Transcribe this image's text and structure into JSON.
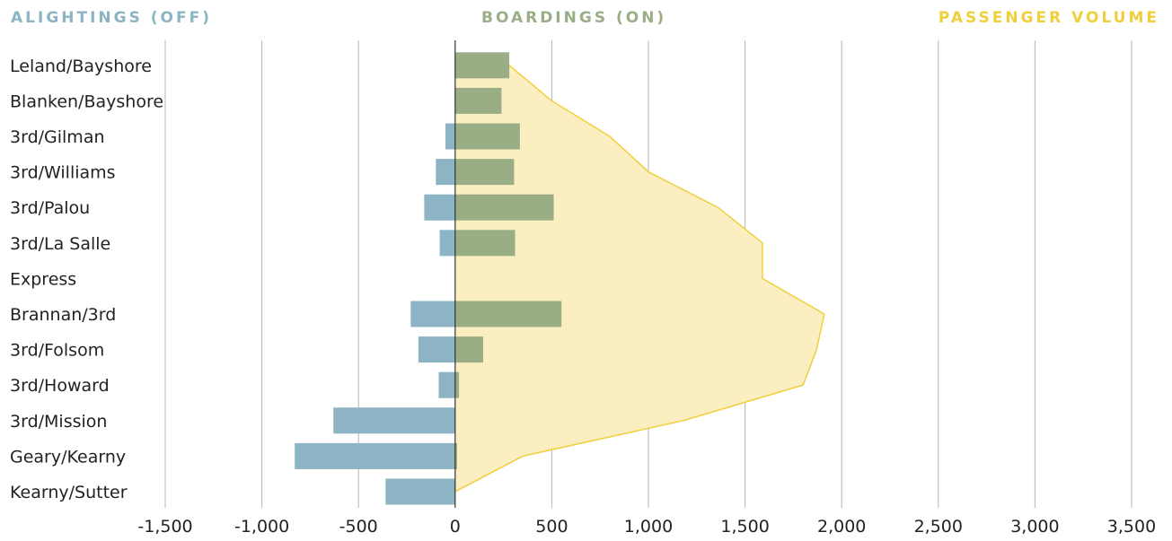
{
  "legend": {
    "alightings": "ALIGHTINGS (OFF)",
    "boardings": "BOARDINGS (ON)",
    "volume": "PASSENGER VOLUME"
  },
  "colors": {
    "alightings": "#8db4c5",
    "boardings": "#9aae86",
    "volume_fill": "#fbeec0",
    "volume_line": "#f0cf3c",
    "grid": "#b5b5b5",
    "axis": "#333333"
  },
  "chart_data": {
    "type": "bar",
    "orientation": "horizontal",
    "categories": [
      "Leland/Bayshore",
      "Blanken/Bayshore",
      "3rd/Gilman",
      "3rd/Williams",
      "3rd/Palou",
      "3rd/La Salle",
      "Express",
      "Brannan/3rd",
      "3rd/Folsom",
      "3rd/Howard",
      "3rd/Mission",
      "Geary/Kearny",
      "Kearny/Sutter"
    ],
    "series": [
      {
        "name": "ALIGHTINGS (OFF)",
        "type": "bar",
        "values": [
          0,
          0,
          -50,
          -100,
          -160,
          -80,
          0,
          -230,
          -190,
          -85,
          -630,
          -830,
          -360
        ]
      },
      {
        "name": "BOARDINGS (ON)",
        "type": "bar",
        "values": [
          280,
          240,
          335,
          305,
          510,
          310,
          0,
          550,
          145,
          20,
          0,
          10,
          0
        ]
      },
      {
        "name": "PASSENGER VOLUME",
        "type": "area",
        "values": [
          280,
          500,
          800,
          1000,
          1360,
          1590,
          1590,
          1910,
          1870,
          1800,
          1180,
          350,
          0
        ]
      }
    ],
    "xlim": [
      -1500,
      3500
    ],
    "xticks": [
      -1500,
      -1000,
      -500,
      0,
      500,
      1000,
      1500,
      2000,
      2500,
      3000,
      3500
    ],
    "xtick_labels": [
      "-1,500",
      "-1,000",
      "-500",
      "0",
      "500",
      "1,000",
      "1,500",
      "2,000",
      "2,500",
      "3,000",
      "3,500"
    ],
    "grid": true,
    "legend_position": "top"
  }
}
